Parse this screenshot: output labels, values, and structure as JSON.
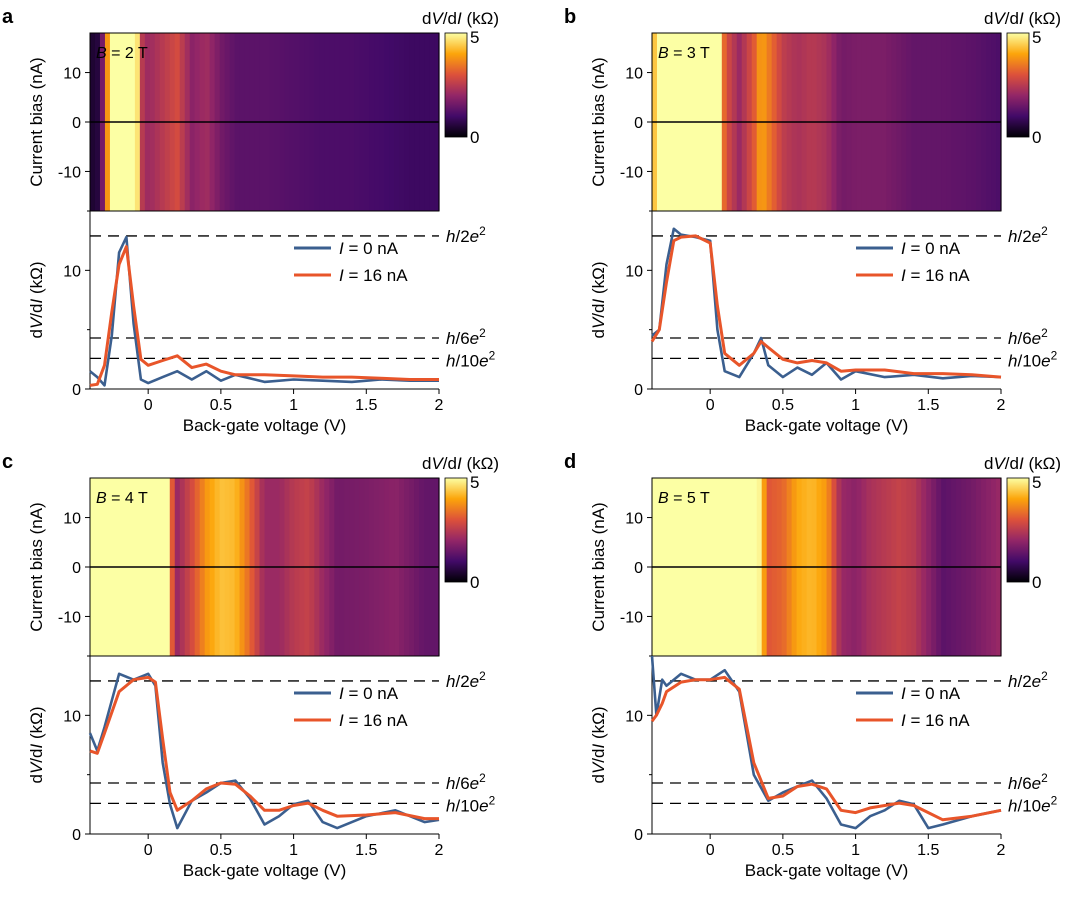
{
  "colors": {
    "heatmap_low": "#000004",
    "heatmap_mid1": "#420a68",
    "heatmap_mid2": "#932667",
    "heatmap_mid3": "#dd513a",
    "heatmap_mid4": "#fca50a",
    "heatmap_high": "#fcffa4",
    "trace_0nA": "#3b5f8f",
    "trace_16nA": "#e8552a",
    "dashed": "#000000"
  },
  "shared": {
    "colorbar_label": "dV/dI (kΩ)",
    "colorbar_ticks": [
      "0",
      "5"
    ],
    "heatmap_ylabel": "Current bias (nA)",
    "heatmap_yticks": [
      "10",
      "0",
      "-10"
    ],
    "line_ylabel": "dV/dI (kΩ)",
    "line_yticks": [
      "0",
      "10"
    ],
    "xlabel": "Back-gate voltage (V)",
    "xticks": [
      "0",
      "0.5",
      "1",
      "1.5",
      "2"
    ],
    "legend": [
      "I = 0 nA",
      "I = 16 nA"
    ],
    "reference_lines": [
      "h/2e²",
      "h/6e²",
      "h/10e²"
    ]
  },
  "panels": [
    {
      "label": "a",
      "field": "B = 2 T"
    },
    {
      "label": "b",
      "field": "B = 3 T"
    },
    {
      "label": "c",
      "field": "B = 4 T"
    },
    {
      "label": "d",
      "field": "B = 5 T"
    }
  ],
  "chart_data": [
    {
      "type": "line",
      "panel": "a",
      "field": "B = 2 T",
      "heatmap_zlim": [
        0,
        5
      ],
      "heatmap_ylim": [
        -18,
        18
      ],
      "xlabel": "Back-gate voltage (V)",
      "ylabel": "dV/dI (kΩ)",
      "xlim": [
        -0.4,
        2.0
      ],
      "ylim": [
        0,
        15
      ],
      "reference_values": [
        12.9,
        4.3,
        2.58
      ],
      "x": [
        -0.4,
        -0.35,
        -0.3,
        -0.25,
        -0.2,
        -0.15,
        -0.1,
        -0.05,
        0,
        0.1,
        0.2,
        0.3,
        0.4,
        0.5,
        0.6,
        0.8,
        1.0,
        1.2,
        1.4,
        1.6,
        1.8,
        2.0
      ],
      "series": [
        {
          "name": "I = 0 nA",
          "values": [
            1.5,
            1.0,
            0.3,
            4.5,
            11.5,
            12.8,
            5.5,
            0.8,
            0.5,
            1.0,
            1.5,
            0.8,
            1.5,
            0.7,
            1.2,
            0.6,
            0.8,
            0.7,
            0.6,
            0.8,
            0.7,
            0.7
          ]
        },
        {
          "name": "I = 16 nA",
          "values": [
            0.3,
            0.4,
            2.0,
            6.5,
            10.5,
            12.0,
            7.0,
            2.5,
            2.0,
            2.4,
            2.8,
            1.8,
            2.1,
            1.5,
            1.2,
            1.2,
            1.1,
            1.0,
            1.0,
            0.9,
            0.8,
            0.8
          ]
        }
      ]
    },
    {
      "type": "line",
      "panel": "b",
      "field": "B = 3 T",
      "heatmap_zlim": [
        0,
        5
      ],
      "heatmap_ylim": [
        -18,
        18
      ],
      "xlabel": "Back-gate voltage (V)",
      "ylabel": "dV/dI (kΩ)",
      "xlim": [
        -0.4,
        2.0
      ],
      "ylim": [
        0,
        15
      ],
      "reference_values": [
        12.9,
        4.3,
        2.58
      ],
      "x": [
        -0.4,
        -0.35,
        -0.3,
        -0.25,
        -0.2,
        -0.1,
        0,
        0.05,
        0.1,
        0.2,
        0.3,
        0.35,
        0.4,
        0.5,
        0.6,
        0.7,
        0.8,
        0.9,
        1.0,
        1.2,
        1.4,
        1.6,
        1.8,
        2.0
      ],
      "series": [
        {
          "name": "I = 0 nA",
          "values": [
            4.5,
            5.0,
            10.5,
            13.5,
            13.0,
            12.8,
            12.5,
            5.0,
            1.5,
            1.0,
            3.0,
            4.3,
            2.0,
            1.0,
            1.8,
            1.2,
            2.2,
            0.8,
            1.5,
            1.0,
            1.2,
            0.9,
            1.1,
            1.0
          ]
        },
        {
          "name": "I = 16 nA",
          "values": [
            4.0,
            5.0,
            9.0,
            12.5,
            12.8,
            12.9,
            12.3,
            7.0,
            3.0,
            2.0,
            3.0,
            4.0,
            3.5,
            2.5,
            2.2,
            2.4,
            2.2,
            1.5,
            1.6,
            1.6,
            1.3,
            1.3,
            1.2,
            1.0
          ]
        }
      ]
    },
    {
      "type": "line",
      "panel": "c",
      "field": "B = 4 T",
      "heatmap_zlim": [
        0,
        5
      ],
      "heatmap_ylim": [
        -18,
        18
      ],
      "xlabel": "Back-gate voltage (V)",
      "ylabel": "dV/dI (kΩ)",
      "xlim": [
        -0.4,
        2.0
      ],
      "ylim": [
        0,
        15
      ],
      "reference_values": [
        12.9,
        4.3,
        2.58
      ],
      "x": [
        -0.4,
        -0.35,
        -0.3,
        -0.2,
        -0.1,
        0,
        0.05,
        0.1,
        0.15,
        0.2,
        0.3,
        0.4,
        0.5,
        0.6,
        0.7,
        0.8,
        0.9,
        1.0,
        1.1,
        1.2,
        1.3,
        1.5,
        1.7,
        1.9,
        2.0
      ],
      "series": [
        {
          "name": "I = 0 nA",
          "values": [
            8.5,
            7.0,
            9.0,
            13.5,
            13.0,
            13.5,
            12.5,
            6.0,
            2.5,
            0.5,
            2.8,
            3.5,
            4.3,
            4.5,
            3.0,
            0.8,
            1.5,
            2.5,
            2.8,
            1.0,
            0.5,
            1.5,
            2.0,
            1.0,
            1.2
          ]
        },
        {
          "name": "I = 16 nA",
          "values": [
            7.0,
            6.8,
            8.5,
            12.0,
            13.0,
            13.2,
            12.8,
            8.0,
            3.5,
            2.0,
            2.8,
            3.8,
            4.3,
            4.2,
            3.2,
            2.0,
            2.0,
            2.4,
            2.6,
            2.0,
            1.5,
            1.6,
            1.8,
            1.3,
            1.3
          ]
        }
      ]
    },
    {
      "type": "line",
      "panel": "d",
      "field": "B = 5 T",
      "heatmap_zlim": [
        0,
        5
      ],
      "heatmap_ylim": [
        -18,
        18
      ],
      "xlabel": "Back-gate voltage (V)",
      "ylabel": "dV/dI (kΩ)",
      "xlim": [
        -0.4,
        2.0
      ],
      "ylim": [
        0,
        15
      ],
      "reference_values": [
        12.9,
        4.3,
        2.58
      ],
      "x": [
        -0.4,
        -0.37,
        -0.33,
        -0.3,
        -0.2,
        -0.1,
        0,
        0.1,
        0.2,
        0.3,
        0.4,
        0.5,
        0.6,
        0.7,
        0.8,
        0.9,
        1.0,
        1.1,
        1.2,
        1.3,
        1.4,
        1.5,
        1.6,
        1.8,
        2.0
      ],
      "series": [
        {
          "name": "I = 0 nA",
          "values": [
            15.0,
            10.0,
            13.0,
            12.5,
            13.5,
            13.0,
            13.0,
            13.8,
            12.0,
            5.0,
            2.8,
            3.5,
            4.0,
            4.5,
            3.0,
            0.8,
            0.5,
            1.5,
            2.0,
            2.8,
            2.5,
            0.5,
            0.8,
            1.5,
            2.0
          ]
        },
        {
          "name": "I = 16 nA",
          "values": [
            9.5,
            10.0,
            11.0,
            12.0,
            12.8,
            13.0,
            13.0,
            13.2,
            12.2,
            6.0,
            3.0,
            3.2,
            4.0,
            4.2,
            3.8,
            2.0,
            1.8,
            2.2,
            2.4,
            2.6,
            2.4,
            1.8,
            1.2,
            1.5,
            2.0
          ]
        }
      ]
    }
  ]
}
